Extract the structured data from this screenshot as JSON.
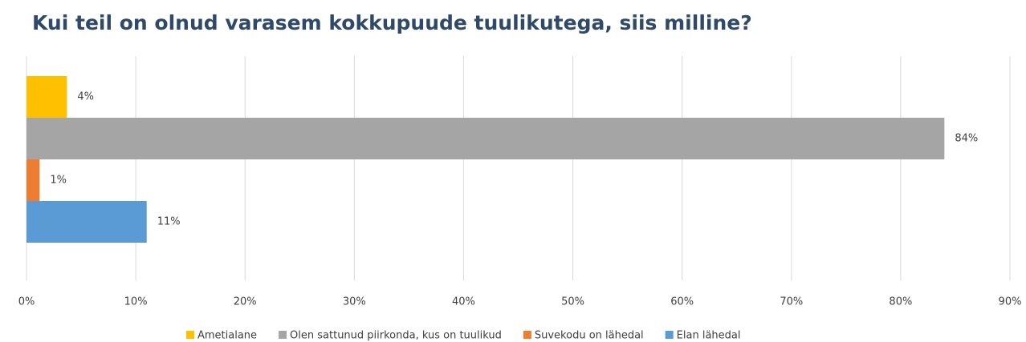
{
  "chart_data": {
    "type": "bar",
    "orientation": "horizontal",
    "title": "Kui teil on olnud varasem kokkupuude tuulikutega, siis milline?",
    "series": [
      {
        "name": "Ametialane",
        "color": "#ffc000",
        "values": [
          3.7
        ],
        "value_labels": [
          "4%"
        ]
      },
      {
        "name": "Olen sattunud piirkonda, kus on tuulikud",
        "color": "#a5a5a5",
        "values": [
          84
        ],
        "value_labels": [
          "84%"
        ]
      },
      {
        "name": "Suvekodu on lähedal",
        "color": "#ed7d31",
        "values": [
          1.2
        ],
        "value_labels": [
          "1%"
        ]
      },
      {
        "name": "Elan lähedal",
        "color": "#5b9bd5",
        "values": [
          11
        ],
        "value_labels": [
          "11%"
        ]
      }
    ],
    "xlim": [
      0,
      90
    ],
    "xticks": [
      {
        "value": 0,
        "label": "0%"
      },
      {
        "value": 10,
        "label": "10%"
      },
      {
        "value": 20,
        "label": "20%"
      },
      {
        "value": 30,
        "label": "30%"
      },
      {
        "value": 40,
        "label": "40%"
      },
      {
        "value": 50,
        "label": "50%"
      },
      {
        "value": 60,
        "label": "60%"
      },
      {
        "value": 70,
        "label": "70%"
      },
      {
        "value": 80,
        "label": "80%"
      },
      {
        "value": 90,
        "label": "90%"
      }
    ],
    "grid": true,
    "legend": "bottom"
  }
}
